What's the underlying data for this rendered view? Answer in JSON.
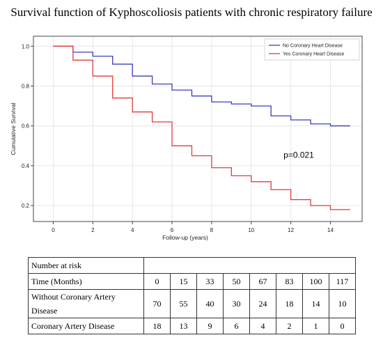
{
  "title": "Survival function of Kyphoscoliosis patients  with chronic respiratory failure",
  "chart_data": {
    "type": "line",
    "step": true,
    "xlabel": "Follow-up (years)",
    "ylabel": "Cumulative Survival",
    "xlim": [
      -1,
      15.6
    ],
    "ylim": [
      0.12,
      1.05
    ],
    "xticks": [
      "0",
      "2",
      "4",
      "6",
      "8",
      "10",
      "12",
      "14"
    ],
    "yticks": [
      "0.2",
      "0.4",
      "0.6",
      "0.8",
      "1.0"
    ],
    "grid": true,
    "legend_position": "top-right",
    "annotation": "p=0.021",
    "series": [
      {
        "name": "No Coronary Heart Disease",
        "color": "#3b3bbf",
        "x": [
          0,
          1,
          2,
          3,
          4,
          5,
          6,
          7,
          8,
          9,
          10,
          11,
          12,
          13,
          14,
          15
        ],
        "y": [
          1.0,
          0.97,
          0.95,
          0.91,
          0.85,
          0.81,
          0.78,
          0.75,
          0.72,
          0.71,
          0.7,
          0.65,
          0.63,
          0.61,
          0.6,
          0.6
        ]
      },
      {
        "name": "Yes Coronary Heart Disease",
        "color": "#e23b3b",
        "x": [
          0,
          1,
          2,
          3,
          4,
          5,
          6,
          7,
          8,
          9,
          10,
          11,
          12,
          13,
          14,
          15
        ],
        "y": [
          1.0,
          0.93,
          0.85,
          0.74,
          0.67,
          0.62,
          0.5,
          0.45,
          0.39,
          0.35,
          0.32,
          0.28,
          0.23,
          0.2,
          0.18,
          0.18
        ]
      }
    ]
  },
  "risk_table": {
    "header": "Number at risk",
    "rows": [
      {
        "label": "Time (Months)",
        "values": [
          "0",
          "15",
          "33",
          "50",
          "67",
          "83",
          "100",
          "117"
        ]
      },
      {
        "label": "Without Coronary Artery Disease",
        "values": [
          "70",
          "55",
          "40",
          "30",
          "24",
          "18",
          "14",
          "10"
        ]
      },
      {
        "label": "Coronary Artery Disease",
        "values": [
          "18",
          "13",
          "9",
          "6",
          "4",
          "2",
          "1",
          "0"
        ]
      }
    ]
  }
}
